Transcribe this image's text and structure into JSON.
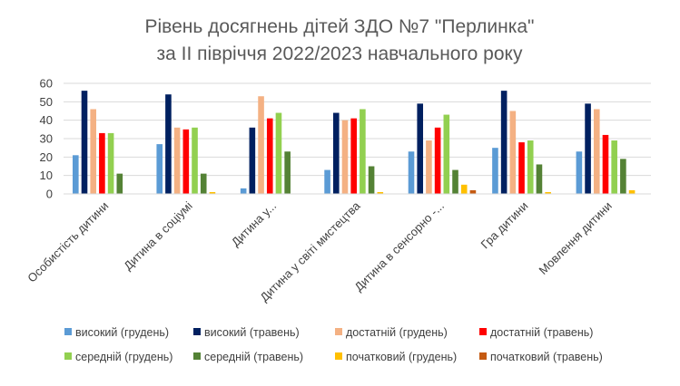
{
  "chart_data": {
    "type": "bar",
    "title_lines": [
      "Рівень досягнень дітей ЗДО №7 \"Перлинка\"",
      "за ІІ півріччя 2022/2023 навчального року"
    ],
    "categories": [
      "Особистість дитини",
      "Дитина в соціумі",
      "Дитина у...",
      "Дитина у світі мистецтва",
      "Дитина в сенсорно -...",
      "Гра дитини",
      "Мовлення дитини"
    ],
    "series": [
      {
        "name": "високий (грудень)",
        "color": "#5B9BD5",
        "values": [
          21,
          27,
          3,
          13,
          23,
          25,
          23
        ]
      },
      {
        "name": "високий (травень)",
        "color": "#002060",
        "values": [
          56,
          54,
          36,
          44,
          49,
          56,
          49
        ]
      },
      {
        "name": "достатній (грудень)",
        "color": "#F4B183",
        "values": [
          46,
          36,
          53,
          40,
          29,
          45,
          46
        ]
      },
      {
        "name": "достатній (травень)",
        "color": "#FF0000",
        "values": [
          33,
          35,
          41,
          41,
          36,
          28,
          32
        ]
      },
      {
        "name": "середній (грудень)",
        "color": "#92D050",
        "values": [
          33,
          36,
          44,
          46,
          43,
          29,
          29
        ]
      },
      {
        "name": "середній (травень)",
        "color": "#548235",
        "values": [
          11,
          11,
          23,
          15,
          13,
          16,
          19
        ]
      },
      {
        "name": "початковий (грудень)",
        "color": "#FFC000",
        "values": [
          0,
          1,
          0,
          1,
          5,
          1,
          2
        ]
      },
      {
        "name": "початковий (травень)",
        "color": "#C55A11",
        "values": [
          0,
          0,
          0,
          0,
          2,
          0,
          0
        ]
      }
    ],
    "y_ticks": [
      "0",
      "10",
      "20",
      "30",
      "40",
      "50",
      "60"
    ],
    "ylim": [
      0,
      60
    ],
    "grid": true,
    "legend_position": "bottom"
  }
}
